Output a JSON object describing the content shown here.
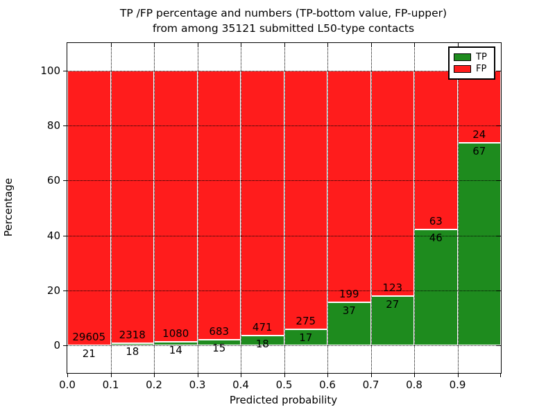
{
  "title": {
    "line1": "TP /FP percentage and numbers (TP-bottom value, FP-upper)",
    "line2": "from among 35121 submitted L50-type contacts"
  },
  "chart_data": {
    "type": "bar",
    "stacked": true,
    "normalized_to_percent": true,
    "title": "TP /FP percentage and numbers (TP-bottom value, FP-upper) from among 35121 submitted L50-type contacts",
    "xlabel": "Predicted probability",
    "ylabel": "Percentage",
    "total_contacts": 35121,
    "bin_start": [
      0.0,
      0.1,
      0.2,
      0.3,
      0.4,
      0.5,
      0.6,
      0.7,
      0.8,
      0.9
    ],
    "bin_width": 0.1,
    "series": [
      {
        "name": "TP",
        "color": "#1e8b1e",
        "counts": [
          21,
          18,
          14,
          15,
          18,
          17,
          37,
          27,
          46,
          67
        ]
      },
      {
        "name": "FP",
        "color": "#ff1c1c",
        "counts": [
          29605,
          2318,
          1080,
          683,
          471,
          275,
          199,
          123,
          63,
          24
        ]
      }
    ],
    "tp_percent": [
      0.07,
      0.77,
      1.28,
      2.15,
      3.68,
      5.82,
      15.68,
      18.0,
      42.2,
      73.63
    ],
    "xlim": [
      0.0,
      1.0
    ],
    "ylim": [
      -10,
      110
    ],
    "yticks": [
      0,
      20,
      40,
      60,
      80,
      100
    ],
    "ytick_labels": [
      "0",
      "20",
      "40",
      "60",
      "80",
      "100"
    ],
    "xticks": [
      0.0,
      0.1,
      0.2,
      0.3,
      0.4,
      0.5,
      0.6,
      0.7,
      0.8,
      0.9
    ],
    "xtick_labels": [
      "0.0",
      "0.1",
      "0.2",
      "0.3",
      "0.4",
      "0.5",
      "0.6",
      "0.7",
      "0.8",
      "0.9"
    ],
    "grid": "dotted",
    "legend_position": "upper right"
  },
  "legend": {
    "items": [
      {
        "label": "TP",
        "color": "#1e8b1e"
      },
      {
        "label": "FP",
        "color": "#ff1c1c"
      }
    ]
  }
}
